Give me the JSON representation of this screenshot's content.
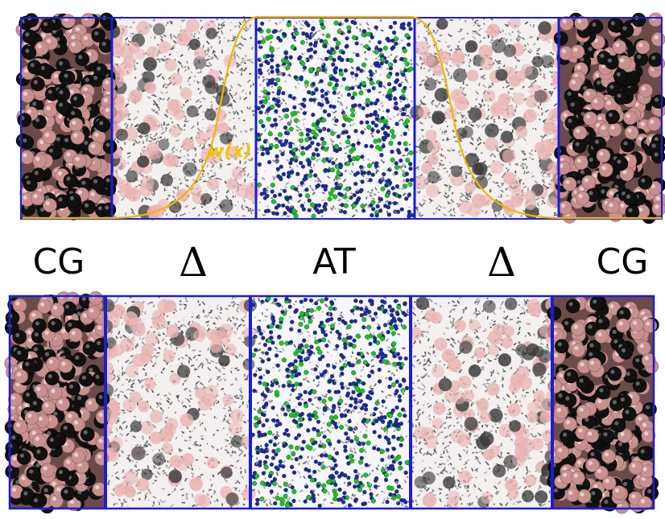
{
  "labels": {
    "cg_left": "CG",
    "delta_left": "Δ",
    "at": "AT",
    "delta_right": "Δ",
    "cg_right": "CG",
    "weight": "w(x)"
  },
  "colors": {
    "region_border": "#1c1cd8",
    "weight_curve": "#f2b500",
    "weight_text": "#f2c400",
    "cg_bead_pink": "#c99090",
    "cg_bead_black": "#1a1a1a",
    "at_blue": "#1e2a8c",
    "at_green": "#1fc21f",
    "atom_gray": "#8a8a8a"
  },
  "panels": [
    "top-panel",
    "bottom-panel"
  ]
}
